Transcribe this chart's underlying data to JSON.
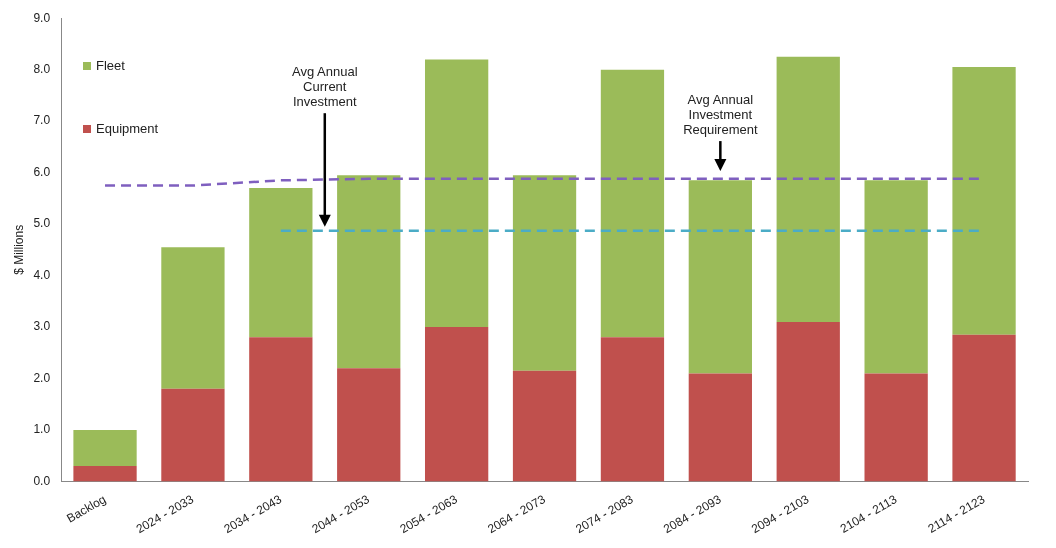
{
  "chart_data": {
    "type": "bar",
    "stacked": true,
    "ylabel": "$ Millions",
    "categories": [
      "Backlog",
      "2024 - 2033",
      "2034 - 2043",
      "2044 - 2053",
      "2054 - 2063",
      "2064 - 2073",
      "2074 - 2083",
      "2084 - 2093",
      "2094 - 2103",
      "2104 - 2113",
      "2114 - 2123"
    ],
    "series": [
      {
        "name": "Equipment",
        "color": "#c0504d",
        "values": [
          0.3,
          1.8,
          2.8,
          2.2,
          3.0,
          2.15,
          2.8,
          2.1,
          3.1,
          2.1,
          2.85
        ]
      },
      {
        "name": "Fleet",
        "color": "#9bbb59",
        "values": [
          0.7,
          2.75,
          2.9,
          3.75,
          5.2,
          3.8,
          5.2,
          3.75,
          5.15,
          3.75,
          5.2
        ]
      },
      {
        "type": "line",
        "color": "#7f5fbf",
        "line_style": "dashed",
        "marker": "none",
        "values": [
          5.75,
          5.75,
          5.85,
          5.88,
          5.88,
          5.88,
          5.88,
          5.88,
          5.88,
          5.88,
          5.88
        ]
      },
      {
        "type": "line",
        "color": "#4bacc6",
        "line_style": "dashed",
        "marker": "none",
        "values": [
          null,
          null,
          4.87,
          4.87,
          4.87,
          4.87,
          4.87,
          4.87,
          4.87,
          4.87,
          4.87
        ]
      }
    ],
    "ylim": [
      0,
      9
    ],
    "yticks": [
      {
        "value": 0,
        "label": "0.0"
      },
      {
        "value": 1,
        "label": "1.0"
      },
      {
        "value": 2,
        "label": "2.0"
      },
      {
        "value": 3,
        "label": "3.0"
      },
      {
        "value": 4,
        "label": "4.0"
      },
      {
        "value": 5,
        "label": "5.0"
      },
      {
        "value": 6,
        "label": "6.0"
      },
      {
        "value": 7,
        "label": "7.0"
      },
      {
        "value": 8,
        "label": "8.0"
      },
      {
        "value": 9,
        "label": "9.0"
      }
    ],
    "grid": false,
    "legend": "top left",
    "annotations": [
      "Avg Annual Current Investment",
      "Avg Annual Investment Requirement"
    ]
  }
}
